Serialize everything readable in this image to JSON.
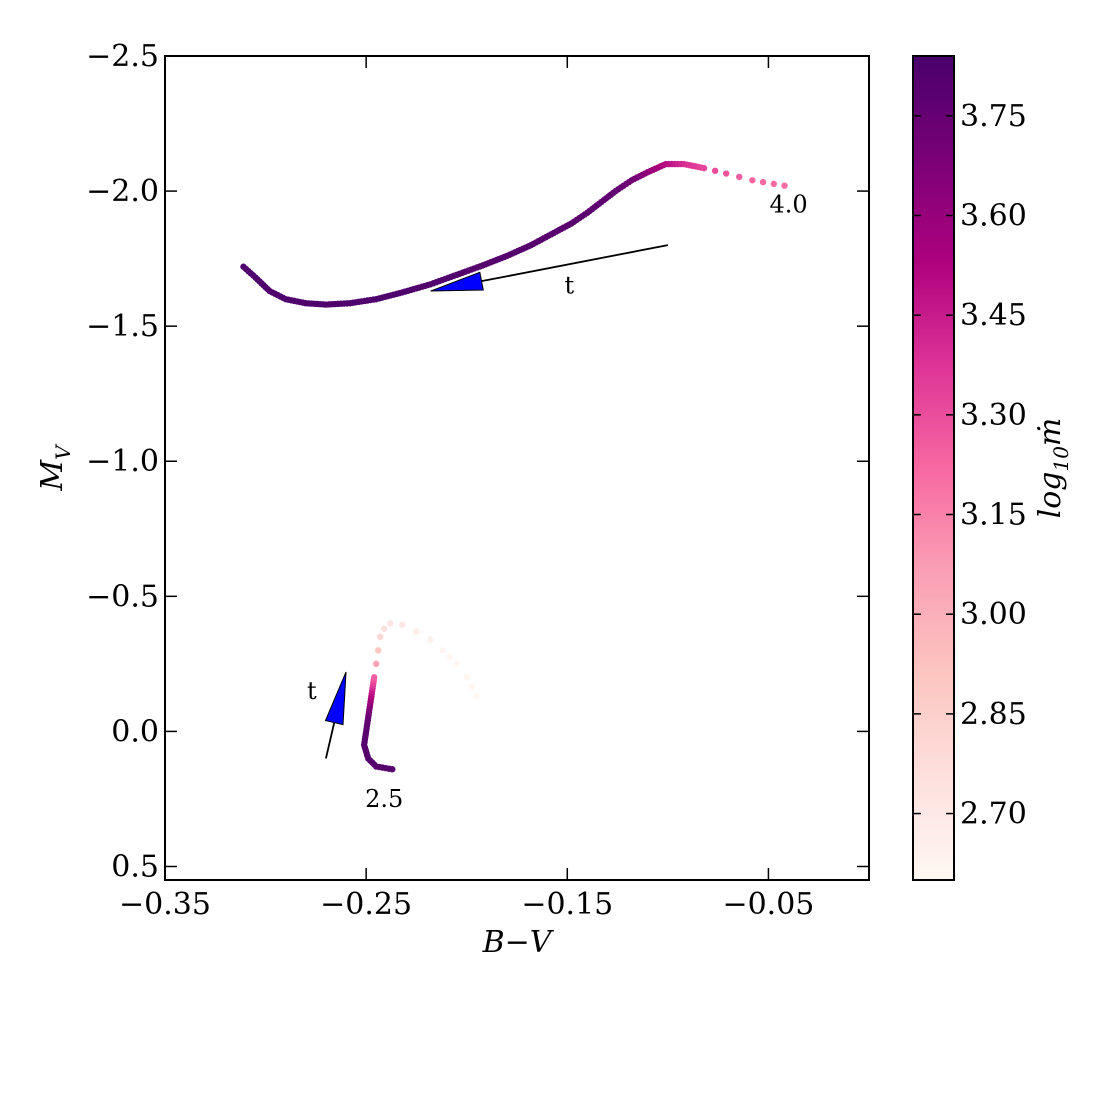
{
  "chart_data": {
    "type": "scatter",
    "title": "",
    "xlabel": "B−V",
    "ylabel": "M_V",
    "xlim": [
      -0.35,
      -0.0
    ],
    "ylim": [
      0.55,
      -2.5
    ],
    "y_inverted": true,
    "x_ticks": [
      -0.35,
      -0.25,
      -0.15,
      -0.05
    ],
    "x_tick_labels": [
      "−0.35",
      "−0.25",
      "−0.15",
      "−0.05"
    ],
    "y_ticks": [
      -2.5,
      -2.0,
      -1.5,
      -1.0,
      -0.5,
      0.0,
      0.5
    ],
    "y_tick_labels": [
      "−2.5",
      "−2.0",
      "−1.5",
      "−1.0",
      "−0.5",
      "0.0",
      "0.5"
    ],
    "grid": false,
    "colorbar": {
      "label": "log10 ṁ",
      "range": [
        2.6,
        3.84
      ],
      "ticks": [
        2.7,
        2.85,
        3.0,
        3.15,
        3.3,
        3.45,
        3.6,
        3.75
      ],
      "tick_labels": [
        "2.70",
        "2.85",
        "3.00",
        "3.15",
        "3.30",
        "3.45",
        "3.60",
        "3.75"
      ],
      "colormap": "RdPu",
      "color_low": "#fff7f3",
      "color_high": "#49006a"
    },
    "series": [
      {
        "name": "4.0",
        "points": [
          [
            -0.311,
            -1.72,
            3.82
          ],
          [
            -0.305,
            -1.68,
            3.82
          ],
          [
            -0.298,
            -1.63,
            3.82
          ],
          [
            -0.29,
            -1.6,
            3.82
          ],
          [
            -0.28,
            -1.585,
            3.82
          ],
          [
            -0.27,
            -1.58,
            3.82
          ],
          [
            -0.258,
            -1.585,
            3.82
          ],
          [
            -0.245,
            -1.6,
            3.82
          ],
          [
            -0.232,
            -1.625,
            3.82
          ],
          [
            -0.218,
            -1.655,
            3.81
          ],
          [
            -0.205,
            -1.69,
            3.81
          ],
          [
            -0.192,
            -1.725,
            3.8
          ],
          [
            -0.18,
            -1.76,
            3.8
          ],
          [
            -0.168,
            -1.8,
            3.8
          ],
          [
            -0.158,
            -1.84,
            3.79
          ],
          [
            -0.148,
            -1.88,
            3.79
          ],
          [
            -0.14,
            -1.92,
            3.78
          ],
          [
            -0.133,
            -1.96,
            3.77
          ],
          [
            -0.126,
            -2.0,
            3.76
          ],
          [
            -0.118,
            -2.04,
            3.72
          ],
          [
            -0.11,
            -2.07,
            3.62
          ],
          [
            -0.101,
            -2.1,
            3.5
          ],
          [
            -0.092,
            -2.1,
            3.4
          ],
          [
            -0.082,
            -2.085,
            3.32
          ],
          [
            -0.071,
            -2.065,
            3.28
          ],
          [
            -0.058,
            -2.04,
            3.22
          ],
          [
            -0.042,
            -2.02,
            3.2
          ]
        ]
      },
      {
        "name": "2.5",
        "points": [
          [
            -0.237,
            0.14,
            3.8
          ],
          [
            -0.245,
            0.13,
            3.8
          ],
          [
            -0.249,
            0.1,
            3.8
          ],
          [
            -0.251,
            0.05,
            3.8
          ],
          [
            -0.25,
            0.0,
            3.78
          ],
          [
            -0.249,
            -0.05,
            3.75
          ],
          [
            -0.248,
            -0.1,
            3.62
          ],
          [
            -0.247,
            -0.15,
            3.45
          ],
          [
            -0.246,
            -0.2,
            3.25
          ],
          [
            -0.245,
            -0.25,
            3.05
          ],
          [
            -0.244,
            -0.3,
            2.9
          ],
          [
            -0.243,
            -0.35,
            2.8
          ],
          [
            -0.241,
            -0.38,
            2.75
          ],
          [
            -0.238,
            -0.4,
            2.72
          ],
          [
            -0.232,
            -0.395,
            2.7
          ],
          [
            -0.225,
            -0.37,
            2.66
          ],
          [
            -0.218,
            -0.34,
            2.64
          ],
          [
            -0.212,
            -0.3,
            2.62
          ],
          [
            -0.205,
            -0.25,
            2.61
          ],
          [
            -0.2,
            -0.2,
            2.61
          ],
          [
            -0.195,
            -0.13,
            2.6
          ]
        ]
      }
    ],
    "annotations": [
      {
        "text": "4.0",
        "x": -0.04,
        "y": -1.92
      },
      {
        "text": "2.5",
        "x": -0.241,
        "y": 0.28
      },
      {
        "text": "t",
        "x": -0.149,
        "y": -1.62,
        "arrow_from": [
          -0.1,
          -1.8
        ],
        "arrow_to": [
          -0.218,
          -1.63
        ],
        "arrow_color": "#0000ff"
      },
      {
        "text": "t",
        "x": -0.277,
        "y": -0.12,
        "arrow_from": [
          -0.27,
          0.1
        ],
        "arrow_to": [
          -0.26,
          -0.22
        ],
        "arrow_color": "#0000ff"
      }
    ]
  }
}
